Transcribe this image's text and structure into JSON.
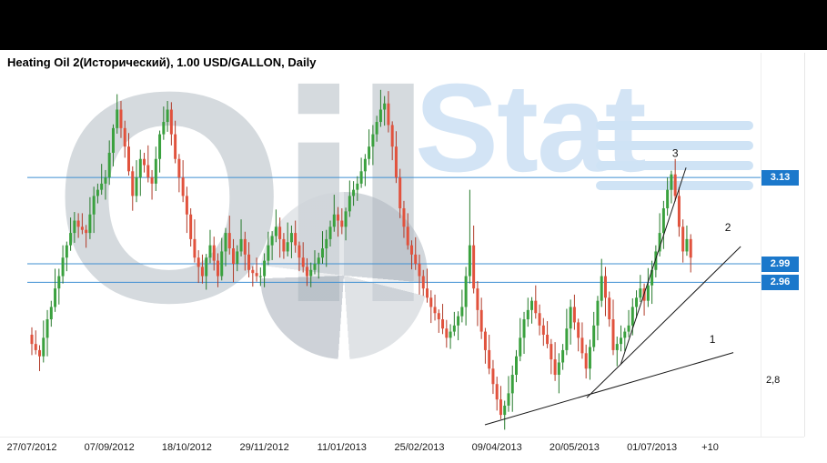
{
  "header": {
    "title": "Heating Oil 2(Исторический), 1.00 USD/GALLON, Daily"
  },
  "watermark": {
    "part1": "Oil",
    "part2": "Stat"
  },
  "axis": {
    "y_label": "2,8",
    "y_label_price": 2.8
  },
  "price_tags": [
    {
      "label": "3.13",
      "price": 3.13
    },
    {
      "label": "2.99",
      "price": 2.99
    },
    {
      "label": "2.96",
      "price": 2.96
    }
  ],
  "chart_data": {
    "type": "candlestick",
    "title": "Heating Oil 2(Исторический), 1.00 USD/GALLON, Daily",
    "timeframe": "Daily",
    "ylim": [
      2.72,
      3.3
    ],
    "x_tick_labels": [
      "27/07/2012",
      "07/09/2012",
      "18/10/2012",
      "29/11/2012",
      "11/01/2013",
      "25/02/2013",
      "09/04/2013",
      "20/05/2013",
      "01/07/2013"
    ],
    "x_tick_indices": [
      0,
      20,
      40,
      60,
      80,
      100,
      120,
      140,
      160
    ],
    "x_extra_label": "+10",
    "x_extra_index": 175,
    "visible_y_labels": [
      "3.13",
      "2.99",
      "2.96",
      "2,8"
    ],
    "levels": [
      3.13,
      2.99,
      2.96
    ],
    "level_color": "#3f8fd2",
    "up_color": "#3aa13e",
    "up_wick_color": "#267a2b",
    "down_color": "#e1523d",
    "down_wick_color": "#b03a28",
    "trend_color": "#1a1a1a",
    "first_open": 2.875,
    "closes": [
      2.86,
      2.85,
      2.84,
      2.87,
      2.9,
      2.92,
      2.95,
      2.97,
      3.0,
      3.02,
      3.04,
      3.06,
      3.05,
      3.045,
      3.04,
      3.07,
      3.1,
      3.11,
      3.12,
      3.13,
      3.17,
      3.21,
      3.24,
      3.21,
      3.18,
      3.14,
      3.1,
      3.13,
      3.16,
      3.15,
      3.13,
      3.12,
      3.16,
      3.2,
      3.22,
      3.24,
      3.2,
      3.16,
      3.13,
      3.1,
      3.07,
      3.03,
      3.0,
      2.985,
      2.97,
      3.0,
      3.02,
      2.995,
      2.97,
      3.01,
      3.04,
      3.015,
      2.99,
      3.01,
      3.03,
      3.005,
      2.98,
      2.975,
      2.97,
      2.97,
      2.995,
      3.02,
      3.035,
      3.05,
      3.03,
      3.01,
      3.025,
      3.04,
      3.02,
      3.0,
      2.985,
      2.97,
      2.98,
      2.99,
      3.0,
      3.015,
      3.03,
      3.05,
      3.07,
      3.06,
      3.05,
      3.075,
      3.1,
      3.11,
      3.12,
      3.14,
      3.16,
      3.18,
      3.2,
      3.22,
      3.24,
      3.25,
      3.215,
      3.18,
      3.13,
      3.08,
      3.05,
      3.02,
      3.005,
      2.99,
      2.97,
      2.95,
      2.935,
      2.92,
      2.91,
      2.9,
      2.885,
      2.87,
      2.88,
      2.89,
      2.905,
      2.92,
      2.97,
      3.02,
      2.95,
      2.915,
      2.88,
      2.85,
      2.82,
      2.795,
      2.77,
      2.745,
      2.76,
      2.78,
      2.81,
      2.84,
      2.87,
      2.9,
      2.915,
      2.93,
      2.91,
      2.89,
      2.875,
      2.86,
      2.835,
      2.81,
      2.83,
      2.85,
      2.885,
      2.92,
      2.895,
      2.87,
      2.845,
      2.82,
      2.855,
      2.89,
      2.93,
      2.97,
      2.935,
      2.9,
      2.85,
      2.86,
      2.87,
      2.88,
      2.89,
      2.92,
      2.935,
      2.95,
      2.93,
      2.955,
      2.98,
      3.01,
      3.04,
      3.08,
      3.11,
      3.135,
      3.1,
      3.05,
      3.01,
      3.03,
      3.0
    ],
    "wick_up_pattern": [
      0.012,
      0.022,
      0.008,
      0.028,
      0.015,
      0.01,
      0.032,
      0.012,
      0.02,
      0.006,
      0.025,
      0.014
    ],
    "wick_down_pattern": [
      0.018,
      0.007,
      0.024,
      0.01,
      0.03,
      0.012,
      0.008,
      0.026,
      0.012,
      0.022,
      0.009,
      0.016
    ],
    "extra_wicks": {
      "113": {
        "up": 0.08
      }
    },
    "trendlines": [
      {
        "label": "1",
        "from": {
          "i": 116.9,
          "p": 2.729
        },
        "to": {
          "i": 181.0,
          "p": 2.846
        },
        "label_pos": {
          "i": 175.6,
          "p": 2.862
        }
      },
      {
        "label": "2",
        "from": {
          "i": 143.2,
          "p": 2.773
        },
        "to": {
          "i": 182.9,
          "p": 3.018
        },
        "label_pos": {
          "i": 179.6,
          "p": 3.043
        }
      },
      {
        "label": "3",
        "from": {
          "i": 151.9,
          "p": 2.826
        },
        "to": {
          "i": 168.8,
          "p": 3.146
        },
        "label_pos": {
          "i": 166.0,
          "p": 3.163
        }
      }
    ]
  }
}
